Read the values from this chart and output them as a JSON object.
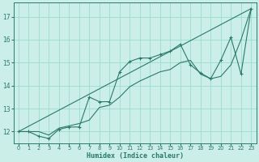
{
  "background_color": "#cceee8",
  "grid_color": "#99ddcc",
  "line_color": "#2a7a6a",
  "xlabel": "Humidex (Indice chaleur)",
  "xlim": [
    -0.5,
    23.5
  ],
  "ylim": [
    11.5,
    17.6
  ],
  "yticks": [
    12,
    13,
    14,
    15,
    16,
    17
  ],
  "xticks": [
    0,
    1,
    2,
    3,
    4,
    5,
    6,
    7,
    8,
    9,
    10,
    11,
    12,
    13,
    14,
    15,
    16,
    17,
    18,
    19,
    20,
    21,
    22,
    23
  ],
  "series_jagged": {
    "x": [
      0,
      1,
      2,
      3,
      4,
      5,
      6,
      7,
      8,
      9,
      10,
      11,
      12,
      13,
      14,
      15,
      16,
      17,
      18,
      19,
      20,
      21,
      22,
      23
    ],
    "y": [
      12.0,
      12.0,
      11.8,
      11.7,
      12.1,
      12.2,
      12.2,
      13.5,
      13.3,
      13.3,
      14.6,
      15.05,
      15.2,
      15.2,
      15.35,
      15.5,
      15.8,
      14.9,
      14.55,
      14.3,
      15.1,
      16.1,
      14.5,
      17.35
    ]
  },
  "series_smooth": {
    "x": [
      0,
      1,
      2,
      3,
      4,
      5,
      6,
      7,
      8,
      9,
      10,
      11,
      12,
      13,
      14,
      15,
      16,
      17,
      18,
      19,
      20,
      21,
      22,
      23
    ],
    "y": [
      12.0,
      12.0,
      12.0,
      11.85,
      12.15,
      12.25,
      12.35,
      12.5,
      13.05,
      13.15,
      13.5,
      13.95,
      14.2,
      14.4,
      14.6,
      14.7,
      15.0,
      15.1,
      14.5,
      14.3,
      14.4,
      14.9,
      16.0,
      17.35
    ]
  },
  "series_linear": {
    "x": [
      0,
      23
    ],
    "y": [
      12.0,
      17.35
    ]
  }
}
